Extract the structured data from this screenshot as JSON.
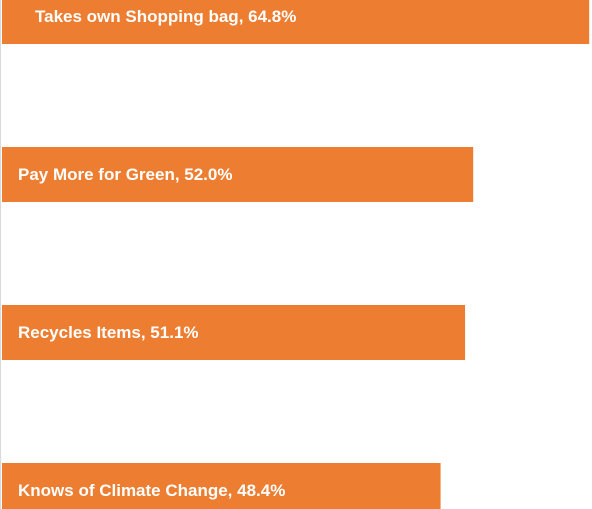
{
  "chart_data": {
    "type": "bar",
    "orientation": "horizontal",
    "values": [
      64.8,
      52.0,
      51.1,
      48.4
    ],
    "value_labels": [
      "Takes own Shopping bag, 64.8%",
      "Pay More for Green, 52.0%",
      "Recycles Items, 51.1%",
      "Knows of Climate Change, 48.4%"
    ],
    "color": "#ed7d31",
    "xlim": [
      0,
      65
    ]
  }
}
